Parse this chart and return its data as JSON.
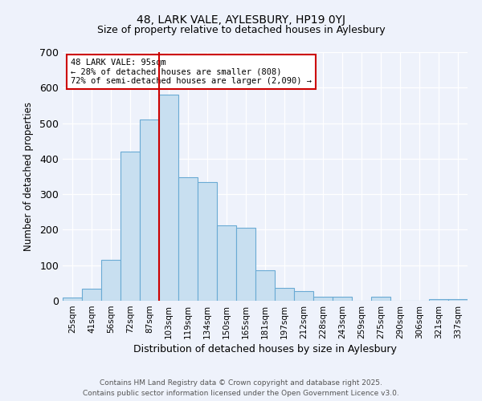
{
  "title1": "48, LARK VALE, AYLESBURY, HP19 0YJ",
  "title2": "Size of property relative to detached houses in Aylesbury",
  "xlabel": "Distribution of detached houses by size in Aylesbury",
  "ylabel": "Number of detached properties",
  "categories": [
    "25sqm",
    "41sqm",
    "56sqm",
    "72sqm",
    "87sqm",
    "103sqm",
    "119sqm",
    "134sqm",
    "150sqm",
    "165sqm",
    "181sqm",
    "197sqm",
    "212sqm",
    "228sqm",
    "243sqm",
    "259sqm",
    "275sqm",
    "290sqm",
    "306sqm",
    "321sqm",
    "337sqm"
  ],
  "values": [
    8,
    35,
    115,
    420,
    510,
    580,
    347,
    335,
    213,
    205,
    85,
    37,
    27,
    12,
    12,
    0,
    12,
    0,
    0,
    5,
    5
  ],
  "bar_color": "#c8dff0",
  "bar_edge_color": "#6aaad4",
  "vline_x_index": 5,
  "vline_color": "#cc0000",
  "annotation_title": "48 LARK VALE: 95sqm",
  "annotation_line1": "← 28% of detached houses are smaller (808)",
  "annotation_line2": "72% of semi-detached houses are larger (2,090) →",
  "annotation_box_facecolor": "#ffffff",
  "annotation_box_edgecolor": "#cc0000",
  "ylim": [
    0,
    700
  ],
  "yticks": [
    0,
    100,
    200,
    300,
    400,
    500,
    600,
    700
  ],
  "footer1": "Contains HM Land Registry data © Crown copyright and database right 2025.",
  "footer2": "Contains public sector information licensed under the Open Government Licence v3.0.",
  "bg_color": "#eef2fb"
}
